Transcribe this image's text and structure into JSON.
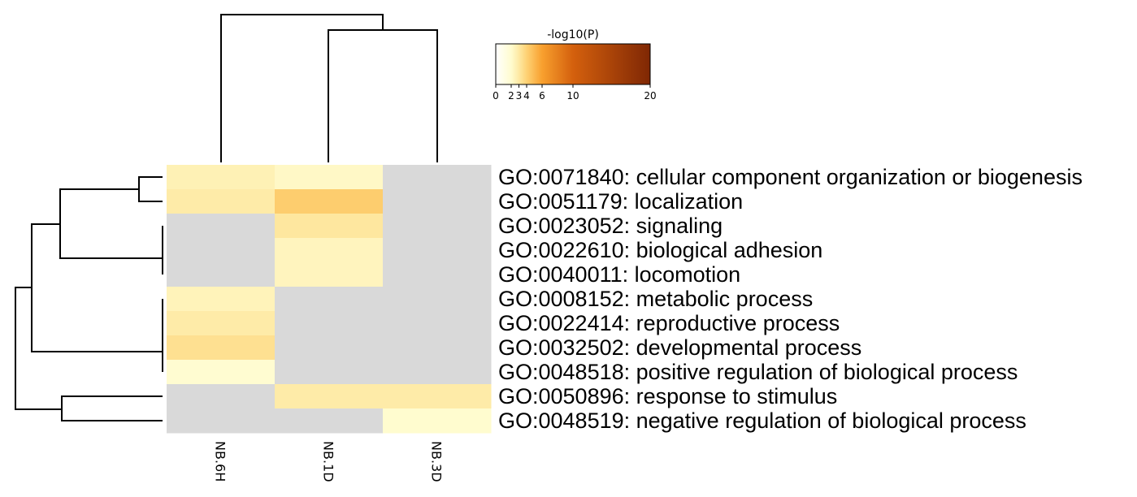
{
  "chart_data": {
    "type": "heatmap",
    "columns": [
      "NB.6H",
      "NB.1D",
      "NB.3D"
    ],
    "rows": [
      "GO:0071840: cellular component organization or biogenesis",
      "GO:0051179: localization",
      "GO:0023052: signaling",
      "GO:0022610: biological adhesion",
      "GO:0040011: locomotion",
      "GO:0008152: metabolic process",
      "GO:0022414: reproductive process",
      "GO:0032502: developmental process",
      "GO:0048518: positive regulation of biological process",
      "GO:0050896: response to stimulus",
      "GO:0048519: negative regulation of biological process"
    ],
    "values": [
      [
        2.6,
        2.2,
        null
      ],
      [
        2.9,
        4.2,
        null
      ],
      [
        null,
        3.1,
        null
      ],
      [
        null,
        2.4,
        null
      ],
      [
        null,
        2.4,
        null
      ],
      [
        2.5,
        null,
        null
      ],
      [
        2.9,
        null,
        null
      ],
      [
        3.4,
        null,
        null
      ],
      [
        1.9,
        null,
        null
      ],
      [
        null,
        2.9,
        2.9
      ],
      [
        null,
        null,
        2.0
      ]
    ],
    "missing_color": "#d9d9d9",
    "colorbar": {
      "title": "-log10(P)",
      "ticks": [
        0,
        2,
        3,
        4,
        6,
        10,
        20
      ],
      "range": [
        0,
        20
      ],
      "colormap": [
        {
          "v": 0,
          "c": "#ffffff"
        },
        {
          "v": 2,
          "c": "#fffccf"
        },
        {
          "v": 3,
          "c": "#fee9a4"
        },
        {
          "v": 4,
          "c": "#fed275"
        },
        {
          "v": 6,
          "c": "#f8a02e"
        },
        {
          "v": 10,
          "c": "#d4600d"
        },
        {
          "v": 20,
          "c": "#7f2704"
        }
      ]
    },
    "column_dendrogram": true,
    "row_dendrogram": true
  }
}
